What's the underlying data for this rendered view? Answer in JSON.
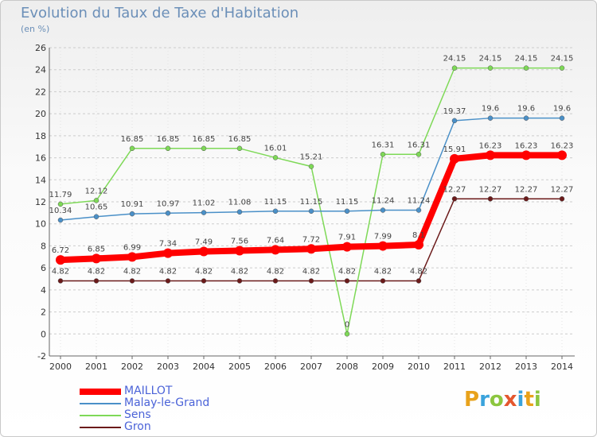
{
  "page": {
    "title": "Evolution du Taux de Taxe d'Habitation",
    "subtitle": "(en %)"
  },
  "logo": {
    "text": "Proxiti",
    "letters": [
      {
        "ch": "P",
        "color": "#e8a21b"
      },
      {
        "ch": "r",
        "color": "#3aa3dc"
      },
      {
        "ch": "o",
        "color": "#8cc63f"
      },
      {
        "ch": "x",
        "color": "#e4572e"
      },
      {
        "ch": "i",
        "color": "#3aa3dc"
      },
      {
        "ch": "t",
        "color": "#e8a21b"
      },
      {
        "ch": "i",
        "color": "#8cc63f"
      }
    ]
  },
  "chart_data": {
    "type": "line",
    "title": "Evolution du Taux de Taxe d'Habitation",
    "ylabel": "(en %)",
    "xlabel": "",
    "x": [
      "2000",
      "2001",
      "2002",
      "2003",
      "2004",
      "2005",
      "2006",
      "2007",
      "2008",
      "2009",
      "2010",
      "2011",
      "2012",
      "2013",
      "2014"
    ],
    "ylim": [
      -2,
      26
    ],
    "yticks": [
      -2,
      0,
      2,
      4,
      6,
      8,
      10,
      12,
      14,
      16,
      18,
      20,
      22,
      24,
      26
    ],
    "grid": "horizontal-dashed",
    "legend_position": "bottom-left",
    "series": [
      {
        "name": "MAILLOT",
        "color": "#ff0000",
        "values": [
          6.72,
          6.85,
          6.99,
          7.34,
          7.49,
          7.56,
          7.64,
          7.72,
          7.91,
          7.99,
          8.1,
          15.91,
          16.23,
          16.23,
          16.23
        ],
        "labels": [
          "6.72",
          "6.85",
          "6.99",
          "7.34",
          "7.49",
          "7.56",
          "7.64",
          "7.72",
          "7.91",
          "7.99",
          "8.1",
          "15.91",
          "16.23",
          "16.23",
          "16.23"
        ]
      },
      {
        "name": "Malay-le-Grand",
        "color": "#4a90c8",
        "values": [
          10.34,
          10.65,
          10.91,
          10.97,
          11.02,
          11.08,
          11.15,
          11.15,
          11.15,
          11.24,
          11.24,
          19.37,
          19.6,
          19.6,
          19.6
        ],
        "labels": [
          "10.34",
          "10.65",
          "10.91",
          "10.97",
          "11.02",
          "11.08",
          "11.15",
          "11.15",
          "11.15",
          "11.24",
          "11.24",
          "19.37",
          "19.6",
          "19.6",
          "19.6"
        ]
      },
      {
        "name": "Sens",
        "color": "#7ed957",
        "values": [
          11.79,
          12.12,
          16.85,
          16.85,
          16.85,
          16.85,
          16.01,
          15.21,
          0,
          16.31,
          16.31,
          24.15,
          24.15,
          24.15,
          24.15
        ],
        "labels": [
          "11.79",
          "12.12",
          "16.85",
          "16.85",
          "16.85",
          "16.85",
          "16.01",
          "15.21",
          "0",
          "16.31",
          "16.31",
          "24.15",
          "24.15",
          "24.15",
          "24.15"
        ]
      },
      {
        "name": "Gron",
        "color": "#6b1a1a",
        "values": [
          4.82,
          4.82,
          4.82,
          4.82,
          4.82,
          4.82,
          4.82,
          4.82,
          4.82,
          4.82,
          4.82,
          12.27,
          12.27,
          12.27,
          12.27
        ],
        "labels": [
          "4.82",
          "4.82",
          "4.82",
          "4.82",
          "4.82",
          "4.82",
          "4.82",
          "4.82",
          "4.82",
          "4.82",
          "4.82",
          "12.27",
          "12.27",
          "12.27",
          "12.27"
        ]
      }
    ]
  }
}
